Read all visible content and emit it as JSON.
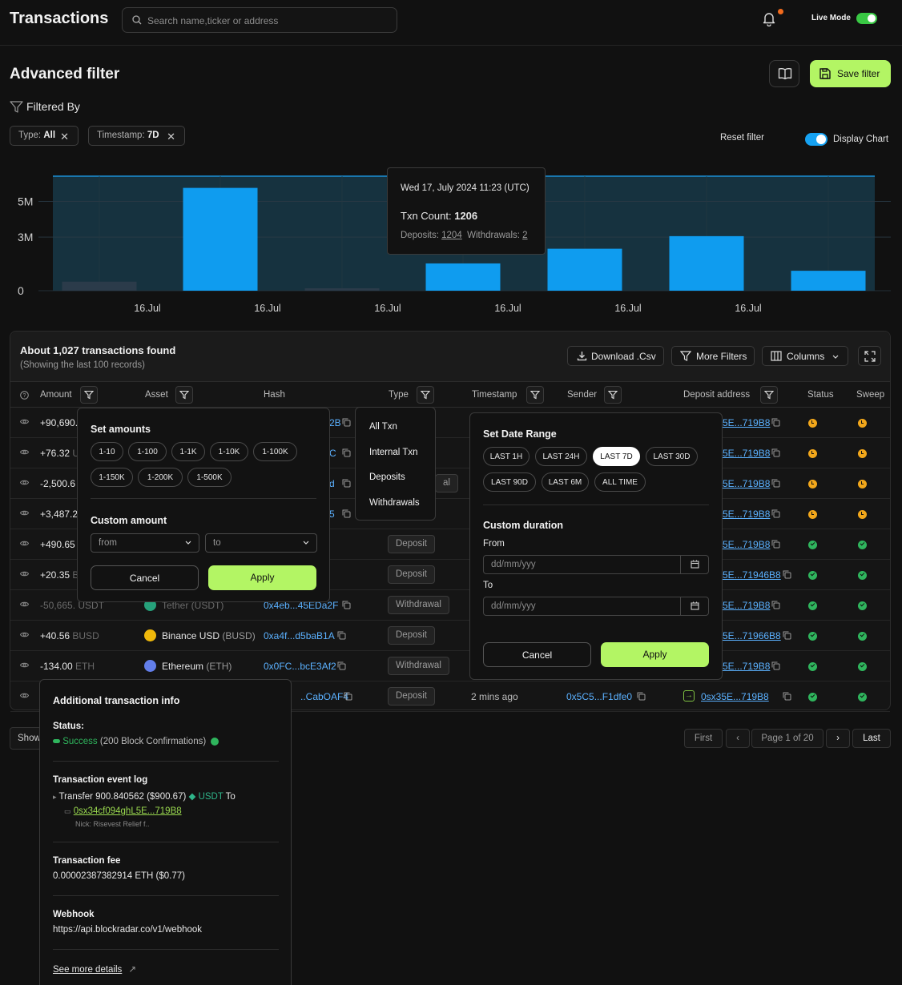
{
  "header": {
    "title": "Transactions",
    "search_placeholder": "Search name,ticker or address",
    "live_mode_label": "Live Mode"
  },
  "filter_page": {
    "title": "Advanced filter",
    "save_filter_label": "Save filter",
    "filtered_by_label": "Filtered By",
    "chips": [
      {
        "key": "Type:",
        "value": "All"
      },
      {
        "key": "Timestamp:",
        "value": "7D"
      }
    ],
    "reset_filter_label": "Reset filter",
    "display_chart_label": "Display Chart"
  },
  "chart_data": {
    "type": "bar",
    "y_ticks": [
      "5M",
      "3M",
      "0"
    ],
    "x_ticks": [
      "16.Jul",
      "16.Jul",
      "16.Jul",
      "16.Jul",
      "16.Jul",
      "16.Jul"
    ],
    "ylim": [
      0,
      5000000
    ],
    "values": [
      430000,
      4900000,
      100000,
      1300000,
      2000000,
      2600000,
      950000
    ],
    "highlighted": [
      false,
      true,
      false,
      true,
      true,
      true,
      true
    ],
    "colors": {
      "bar": "#0f9cef",
      "bar_dim": "#2b3b4a",
      "area": "#16323f",
      "line": "#1a8fd6"
    }
  },
  "tooltip": {
    "date": "Wed 17, July 2024 11:23 (UTC)",
    "txn_count_label": "Txn Count:",
    "txn_count": "1206",
    "deposits_label": "Deposits:",
    "deposits": "1204",
    "withdrawals_label": "Withdrawals:",
    "withdrawals": "2"
  },
  "table": {
    "found": "About 1,027 transactions found",
    "showing": "(Showing the last 100 records)",
    "download_label": "Download .Csv",
    "more_filters_label": "More Filters",
    "columns_label": "Columns",
    "headers": {
      "amount": "Amount",
      "asset": "Asset",
      "hash": "Hash",
      "type": "Type",
      "timestamp": "Timestamp",
      "sender": "Sender",
      "deposit_address": "Deposit address",
      "status": "Status",
      "sweep": "Sweep"
    },
    "rows": [
      {
        "amount": "+90,690.",
        "hash": "2B",
        "deposit": "5E...719B8",
        "status": "pending",
        "sweep": "pending"
      },
      {
        "amount": "+76.32",
        "amount_unit": "U",
        "hash": "C",
        "deposit": "5E...719B8",
        "status": "pending",
        "sweep": "pending"
      },
      {
        "amount": "-2,500.6",
        "hash": "d",
        "type": "al",
        "deposit": "5E...719B8",
        "status": "pending",
        "sweep": "pending"
      },
      {
        "amount": "+3,487.2",
        "hash": "5",
        "deposit": "5E...719B8",
        "status": "pending",
        "sweep": "pending"
      },
      {
        "amount": "+490.65",
        "type": "Deposit",
        "deposit": "5E...719B8",
        "status": "success",
        "sweep": "success"
      },
      {
        "amount": "+20.35",
        "amount_unit": "B",
        "type": "Deposit",
        "deposit": "5E...71946B8",
        "status": "success",
        "sweep": "success"
      },
      {
        "amount": "-50,665.",
        "amount_unit": "USDT",
        "asset": "Tether (USDT)",
        "hash": "0x4eb...45EDa2F",
        "type": "Withdrawal",
        "deposit": "5E...719B8",
        "status": "success",
        "sweep": "success"
      },
      {
        "amount": "+40.56",
        "amount_unit": "BUSD",
        "asset": "Binance USD",
        "asset_unit": "(BUSD)",
        "hash": "0xa4f...d5baB1A",
        "type": "Deposit",
        "deposit": "5E...71966B8",
        "status": "success",
        "sweep": "success"
      },
      {
        "amount": "-134.00",
        "amount_unit": "ETH",
        "asset": "Ethereum",
        "asset_unit": "(ETH)",
        "hash": "0x0FC...bcE3Af2",
        "type": "Withdrawal",
        "deposit": "5E...719B8",
        "status": "success",
        "sweep": "success"
      },
      {
        "hash": "..CabOAF4",
        "type": "Deposit",
        "timestamp": "2 mins ago",
        "sender": "0x5C5...F1dfe0",
        "deposit": "0sx35E...719B8",
        "status": "success",
        "sweep": "success"
      }
    ]
  },
  "pagination": {
    "show_label": "Show",
    "first": "First",
    "page": "Page 1 of 20",
    "last": "Last"
  },
  "amount_popup": {
    "title": "Set amounts",
    "options": [
      "1-10",
      "1-100",
      "1-1K",
      "1-10K",
      "1-100K",
      "1-150K",
      "1-200K",
      "1-500K"
    ],
    "custom_title": "Custom amount",
    "from_placeholder": "from",
    "to_placeholder": "to",
    "cancel": "Cancel",
    "apply": "Apply"
  },
  "type_popup": {
    "items": [
      "All Txn",
      "Internal Txn",
      "Deposits",
      "Withdrawals"
    ]
  },
  "date_popup": {
    "title": "Set Date Range",
    "options": [
      "LAST 1H",
      "LAST 24H",
      "LAST 7D",
      "LAST 30D",
      "LAST 90D",
      "LAST 6M",
      "ALL TIME"
    ],
    "selected": "LAST 7D",
    "custom_title": "Custom duration",
    "from_label": "From",
    "to_label": "To",
    "date_placeholder": "dd/mm/yyy",
    "cancel": "Cancel",
    "apply": "Apply"
  },
  "info_popup": {
    "title": "Additional transaction info",
    "status_label": "Status:",
    "status_value": "Success",
    "status_detail": "(200 Block Confirmations)",
    "event_log_label": "Transaction event log",
    "event_text": "Transfer 900.840562 ($900.67)",
    "event_token": "USDT",
    "event_to": "To",
    "event_address": "0sx34cf094ghL5E...719B8",
    "event_nick": "Nick: Risevest Relief f..",
    "fee_label": "Transaction fee",
    "fee_value": "0.00002387382914 ETH ($0.77)",
    "webhook_label": "Webhook",
    "webhook_value": "https://api.blockradar.co/v1/webhook",
    "see_more": "See more details"
  }
}
